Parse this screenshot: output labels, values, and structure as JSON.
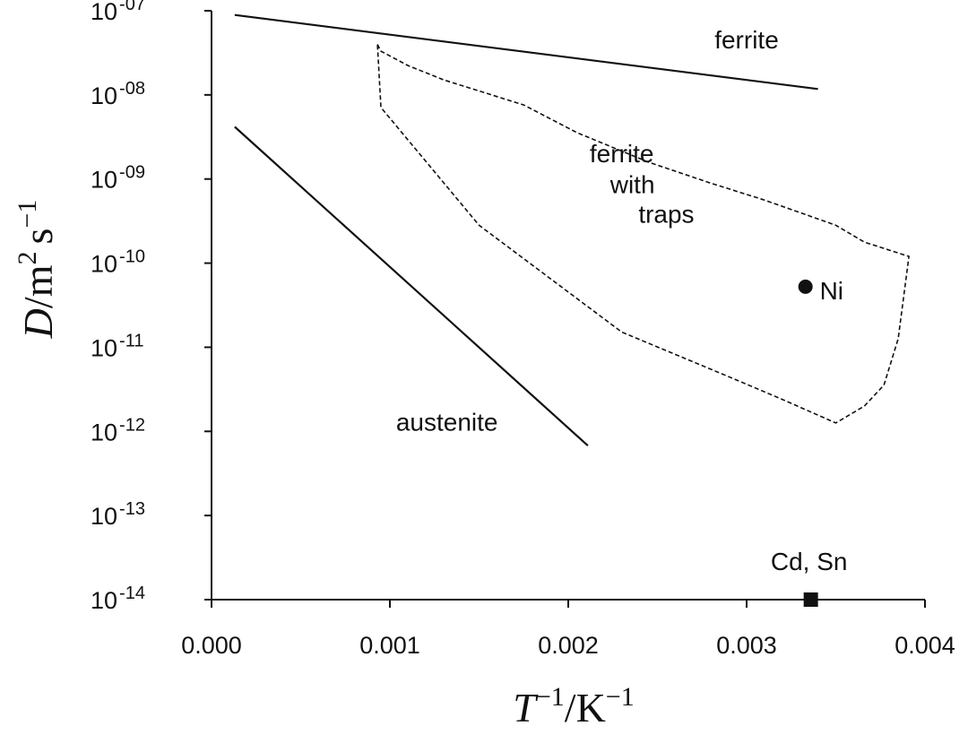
{
  "chart_data": {
    "type": "line",
    "title": "",
    "xlabel": {
      "base": "T",
      "base_sup": "−1",
      "sep": "/",
      "unit": "K",
      "unit_sup": "−1"
    },
    "ylabel": {
      "var": "D",
      "sep": "/",
      "u1": "m",
      "u1_sup": "2",
      "u2": "s",
      "u2_sup": "−1"
    },
    "xlim": [
      0,
      0.004
    ],
    "ylim_log10": [
      -14,
      -7
    ],
    "x_ticks": [
      {
        "value": 0.0,
        "label": "0.000"
      },
      {
        "value": 0.001,
        "label": "0.001"
      },
      {
        "value": 0.002,
        "label": "0.002"
      },
      {
        "value": 0.003,
        "label": "0.003"
      },
      {
        "value": 0.004,
        "label": "0.004"
      }
    ],
    "y_ticks": [
      {
        "exp": -7,
        "base": "10",
        "sup": "-07"
      },
      {
        "exp": -8,
        "base": "10",
        "sup": "-08"
      },
      {
        "exp": -9,
        "base": "10",
        "sup": "-09"
      },
      {
        "exp": -10,
        "base": "10",
        "sup": "-10"
      },
      {
        "exp": -11,
        "base": "10",
        "sup": "-11"
      },
      {
        "exp": -12,
        "base": "10",
        "sup": "-12"
      },
      {
        "exp": -13,
        "base": "10",
        "sup": "-13"
      },
      {
        "exp": -14,
        "base": "10",
        "sup": "-14"
      }
    ],
    "series": [
      {
        "name": "ferrite",
        "style": "solid",
        "x": [
          0.00013,
          0.0034
        ],
        "log10_y": [
          -7.05,
          -7.93
        ]
      },
      {
        "name": "austenite",
        "style": "solid",
        "x": [
          0.00013,
          0.00211
        ],
        "log10_y": [
          -8.38,
          -12.17
        ]
      }
    ],
    "region": {
      "name": "ferrite with traps",
      "style": "dashed",
      "x": [
        0.00093,
        0.00095,
        0.0011,
        0.0013,
        0.00175,
        0.00205,
        0.00245,
        0.0028,
        0.0031,
        0.0035,
        0.00366,
        0.00391,
        0.00385,
        0.00377,
        0.00366,
        0.0035,
        0.0032,
        0.0029,
        0.0023,
        0.0015,
        0.00095,
        0.00093
      ],
      "log10_y": [
        -7.4,
        -7.48,
        -7.65,
        -7.82,
        -8.12,
        -8.45,
        -8.8,
        -9.05,
        -9.25,
        -9.55,
        -9.75,
        -9.92,
        -10.9,
        -11.45,
        -11.7,
        -11.9,
        -11.62,
        -11.35,
        -10.82,
        -9.55,
        -8.15,
        -7.4
      ]
    },
    "points": [
      {
        "name": "Ni",
        "marker": "circle",
        "x": 0.00333,
        "log10_y": -10.28
      },
      {
        "name": "Cd, Sn",
        "marker": "square",
        "x": 0.00336,
        "log10_y": -14.0
      }
    ],
    "annotations": [
      {
        "text": "ferrite",
        "x": 0.003,
        "log10_y": -7.45,
        "anchor": "middle"
      },
      {
        "text": "ferrite",
        "x": 0.0023,
        "log10_y": -8.8,
        "anchor": "middle"
      },
      {
        "text": "with",
        "x": 0.00236,
        "log10_y": -9.17,
        "anchor": "middle"
      },
      {
        "text": "traps",
        "x": 0.00255,
        "log10_y": -9.52,
        "anchor": "middle"
      },
      {
        "text": "Ni",
        "x": 0.00341,
        "log10_y": -10.43,
        "anchor": "start"
      },
      {
        "text": "austenite",
        "x": 0.00132,
        "log10_y": -11.99,
        "anchor": "middle"
      },
      {
        "text": "Cd, Sn",
        "x": 0.00335,
        "log10_y": -13.65,
        "anchor": "middle"
      }
    ]
  }
}
